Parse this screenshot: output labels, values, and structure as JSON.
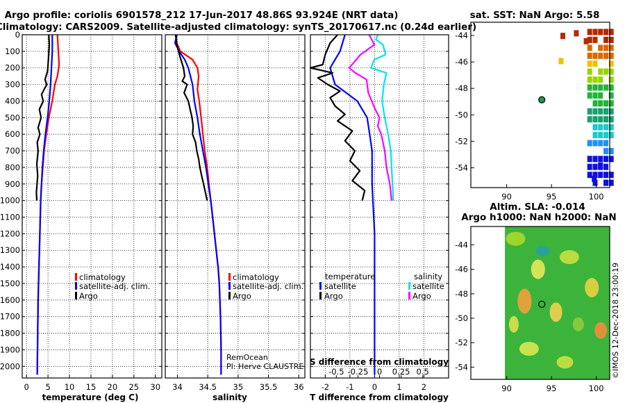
{
  "title_line1": "Argo profile: coriolis 6901578_212 17-Jun-2017 48.86S 93.924E (NRT data)",
  "title_line2": "Climatology: CARS2009. Satellite-adjusted climatology: synTS_20170617.nc (0.24d earlier)",
  "depth_axis": {
    "range": [
      0,
      2070
    ],
    "ticks": [
      0,
      100,
      200,
      300,
      400,
      500,
      600,
      700,
      800,
      900,
      1000,
      1100,
      1200,
      1300,
      1400,
      1500,
      1600,
      1700,
      1800,
      1900,
      2000
    ]
  },
  "colors": {
    "climatology": "#ff0000",
    "satellite": "#0000ff",
    "argo": "#000000",
    "sat_salinity": "#00e5ee",
    "argo_salinity": "#ff00ff"
  },
  "chart_data": [
    {
      "type": "line",
      "name": "temperature",
      "xlabel": "temperature (deg C)",
      "xlim": [
        -1,
        31.5
      ],
      "xticks": [
        0,
        5,
        10,
        15,
        20,
        25,
        30
      ],
      "legend": [
        "climatology",
        "satellite-adj. clim.",
        "Argo"
      ],
      "series": [
        {
          "name": "climatology",
          "points": [
            [
              7.2,
              0
            ],
            [
              7.4,
              100
            ],
            [
              7.6,
              180
            ],
            [
              7.2,
              250
            ],
            [
              6.6,
              300
            ],
            [
              6.0,
              400
            ],
            [
              5.2,
              500
            ],
            [
              4.6,
              600
            ],
            [
              4.1,
              700
            ],
            [
              3.8,
              800
            ],
            [
              3.5,
              900
            ],
            [
              3.3,
              1000
            ],
            [
              3.1,
              1200
            ],
            [
              2.9,
              1400
            ],
            [
              2.7,
              1600
            ],
            [
              2.6,
              1800
            ],
            [
              2.5,
              2050
            ]
          ]
        },
        {
          "name": "satellite-adj. clim.",
          "points": [
            [
              6.0,
              0
            ],
            [
              6.0,
              100
            ],
            [
              5.8,
              200
            ],
            [
              5.6,
              300
            ],
            [
              5.3,
              400
            ],
            [
              4.9,
              500
            ],
            [
              4.4,
              600
            ],
            [
              4.0,
              700
            ],
            [
              3.7,
              800
            ],
            [
              3.5,
              900
            ],
            [
              3.3,
              1000
            ],
            [
              3.1,
              1200
            ],
            [
              2.9,
              1400
            ],
            [
              2.7,
              1600
            ],
            [
              2.6,
              1800
            ],
            [
              2.5,
              2050
            ]
          ]
        },
        {
          "name": "Argo",
          "points": [
            [
              5.2,
              0
            ],
            [
              5.3,
              60
            ],
            [
              5.1,
              150
            ],
            [
              4.9,
              220
            ],
            [
              4.3,
              270
            ],
            [
              4.7,
              300
            ],
            [
              3.5,
              360
            ],
            [
              3.9,
              400
            ],
            [
              3.0,
              450
            ],
            [
              3.4,
              500
            ],
            [
              2.7,
              560
            ],
            [
              3.1,
              600
            ],
            [
              2.5,
              650
            ],
            [
              2.7,
              700
            ],
            [
              2.4,
              780
            ],
            [
              2.6,
              850
            ],
            [
              2.3,
              950
            ],
            [
              2.4,
              1000
            ]
          ]
        }
      ]
    },
    {
      "type": "line",
      "name": "salinity",
      "xlabel": "salinity",
      "xlim": [
        33.8,
        36.1
      ],
      "xticks": [
        34,
        34.5,
        35,
        35.5,
        36
      ],
      "legend": [
        "climatology",
        "satellite-adj. clim.",
        "Argo"
      ],
      "series": [
        {
          "name": "climatology",
          "points": [
            [
              33.97,
              0
            ],
            [
              33.99,
              50
            ],
            [
              34.05,
              100
            ],
            [
              34.25,
              150
            ],
            [
              34.33,
              200
            ],
            [
              34.35,
              250
            ],
            [
              34.33,
              330
            ],
            [
              34.36,
              400
            ],
            [
              34.39,
              500
            ],
            [
              34.42,
              600
            ],
            [
              34.45,
              700
            ],
            [
              34.49,
              800
            ],
            [
              34.52,
              900
            ],
            [
              34.55,
              1000
            ],
            [
              34.58,
              1100
            ],
            [
              34.61,
              1200
            ],
            [
              34.64,
              1300
            ],
            [
              34.67,
              1400
            ],
            [
              34.69,
              1500
            ],
            [
              34.71,
              1700
            ],
            [
              34.72,
              1900
            ],
            [
              34.72,
              2050
            ]
          ]
        },
        {
          "name": "satellite-adj. clim.",
          "points": [
            [
              33.99,
              0
            ],
            [
              33.96,
              50
            ],
            [
              34.03,
              100
            ],
            [
              34.12,
              150
            ],
            [
              34.18,
              200
            ],
            [
              34.25,
              300
            ],
            [
              34.28,
              400
            ],
            [
              34.33,
              500
            ],
            [
              34.37,
              600
            ],
            [
              34.42,
              700
            ],
            [
              34.47,
              800
            ],
            [
              34.51,
              900
            ],
            [
              34.55,
              1000
            ],
            [
              34.58,
              1100
            ],
            [
              34.61,
              1200
            ],
            [
              34.64,
              1300
            ],
            [
              34.67,
              1400
            ],
            [
              34.69,
              1500
            ],
            [
              34.71,
              1700
            ],
            [
              34.72,
              1900
            ],
            [
              34.72,
              2050
            ]
          ]
        },
        {
          "name": "Argo",
          "points": [
            [
              33.97,
              0
            ],
            [
              33.99,
              60
            ],
            [
              34.04,
              130
            ],
            [
              34.1,
              200
            ],
            [
              34.12,
              250
            ],
            [
              34.08,
              280
            ],
            [
              34.16,
              300
            ],
            [
              34.11,
              350
            ],
            [
              34.18,
              400
            ],
            [
              34.21,
              450
            ],
            [
              34.24,
              500
            ],
            [
              34.26,
              550
            ],
            [
              34.25,
              600
            ],
            [
              34.3,
              650
            ],
            [
              34.32,
              700
            ],
            [
              34.35,
              750
            ],
            [
              34.37,
              800
            ],
            [
              34.4,
              850
            ],
            [
              34.43,
              900
            ],
            [
              34.46,
              950
            ],
            [
              34.49,
              1000
            ]
          ]
        }
      ]
    },
    {
      "type": "line",
      "name": "difference",
      "xlabel": "T difference from climatology",
      "xlim": [
        -2.6,
        3.0
      ],
      "xticks": [
        -2,
        -1,
        0,
        1,
        2
      ],
      "top_label": "S difference from climatology",
      "top_ticks": [
        "-0.5",
        "-0.25",
        "0",
        "0.25",
        "0.5"
      ],
      "legend": [
        "temperature",
        "satellite",
        "Argo",
        "salinity",
        "satellite",
        "Argo"
      ],
      "series": [
        {
          "name": "temperature satellite",
          "points": [
            [
              -1.2,
              0
            ],
            [
              -1.4,
              100
            ],
            [
              -1.8,
              200
            ],
            [
              -1.6,
              300
            ],
            [
              -0.7,
              400
            ],
            [
              -0.3,
              500
            ],
            [
              -0.2,
              600
            ],
            [
              -0.1,
              700
            ],
            [
              -0.1,
              900
            ],
            [
              0,
              1200
            ],
            [
              0,
              1600
            ],
            [
              0,
              2050
            ]
          ]
        },
        {
          "name": "temperature Argo",
          "points": [
            [
              -1.5,
              0
            ],
            [
              -1.8,
              50
            ],
            [
              -2.0,
              120
            ],
            [
              -2.1,
              180
            ],
            [
              -2.6,
              200
            ],
            [
              -1.7,
              230
            ],
            [
              -2.3,
              260
            ],
            [
              -1.9,
              300
            ],
            [
              -1.4,
              340
            ],
            [
              -1.8,
              380
            ],
            [
              -1.6,
              430
            ],
            [
              -1.2,
              480
            ],
            [
              -1.5,
              520
            ],
            [
              -0.9,
              580
            ],
            [
              -1.2,
              640
            ],
            [
              -0.8,
              700
            ],
            [
              -1.0,
              760
            ],
            [
              -0.6,
              820
            ],
            [
              -0.9,
              880
            ],
            [
              -0.4,
              940
            ],
            [
              -0.5,
              1000
            ]
          ]
        },
        {
          "name": "salinity satellite",
          "points": [
            [
              -0.02,
              0
            ],
            [
              -0.04,
              30
            ],
            [
              0.04,
              60
            ],
            [
              0.07,
              120
            ],
            [
              -0.06,
              150
            ],
            [
              -0.1,
              200
            ],
            [
              0.08,
              230
            ],
            [
              0.05,
              300
            ],
            [
              0.03,
              400
            ],
            [
              0.06,
              500
            ],
            [
              0.1,
              600
            ],
            [
              0.13,
              700
            ],
            [
              0.14,
              800
            ],
            [
              0.15,
              900
            ],
            [
              0.16,
              1000
            ]
          ]
        },
        {
          "name": "salinity Argo",
          "points": [
            [
              -0.12,
              0
            ],
            [
              -0.06,
              60
            ],
            [
              -0.22,
              120
            ],
            [
              -0.35,
              200
            ],
            [
              -0.28,
              230
            ],
            [
              -0.15,
              270
            ],
            [
              -0.13,
              350
            ],
            [
              -0.05,
              450
            ],
            [
              0.0,
              500
            ],
            [
              -0.02,
              550
            ],
            [
              0.02,
              600
            ],
            [
              0.06,
              700
            ],
            [
              0.08,
              800
            ],
            [
              0.12,
              900
            ],
            [
              0.14,
              1000
            ]
          ]
        }
      ]
    },
    {
      "type": "heatmap",
      "name": "sst-map",
      "title": "sat. SST: NaN Argo: 5.58",
      "xlim": [
        86,
        101.5
      ],
      "ylim": [
        -55.5,
        -43
      ],
      "xticks": [
        90,
        95,
        100
      ],
      "yticks": [
        -44,
        -46,
        -48,
        -50,
        -52,
        -54
      ],
      "marker": [
        93.924,
        -48.86
      ]
    },
    {
      "type": "heatmap",
      "name": "sla-map",
      "title_line1": "Altim. SLA: -0.014",
      "title_line2": "Argo h1000: NaN h2000: NaN",
      "xlim": [
        86,
        101.5
      ],
      "ylim": [
        -55,
        -42.5
      ],
      "xticks": [
        90,
        95,
        100
      ],
      "yticks": [
        -44,
        -46,
        -48,
        -50,
        -52,
        -54
      ],
      "marker": [
        93.924,
        -48.86
      ]
    }
  ],
  "annotation_remocean": "RemOcean",
  "annotation_pi": "PI: Herve CLAUSTRE",
  "imos_credit": "©IMOS 12-Dec-2018 23:00:19"
}
